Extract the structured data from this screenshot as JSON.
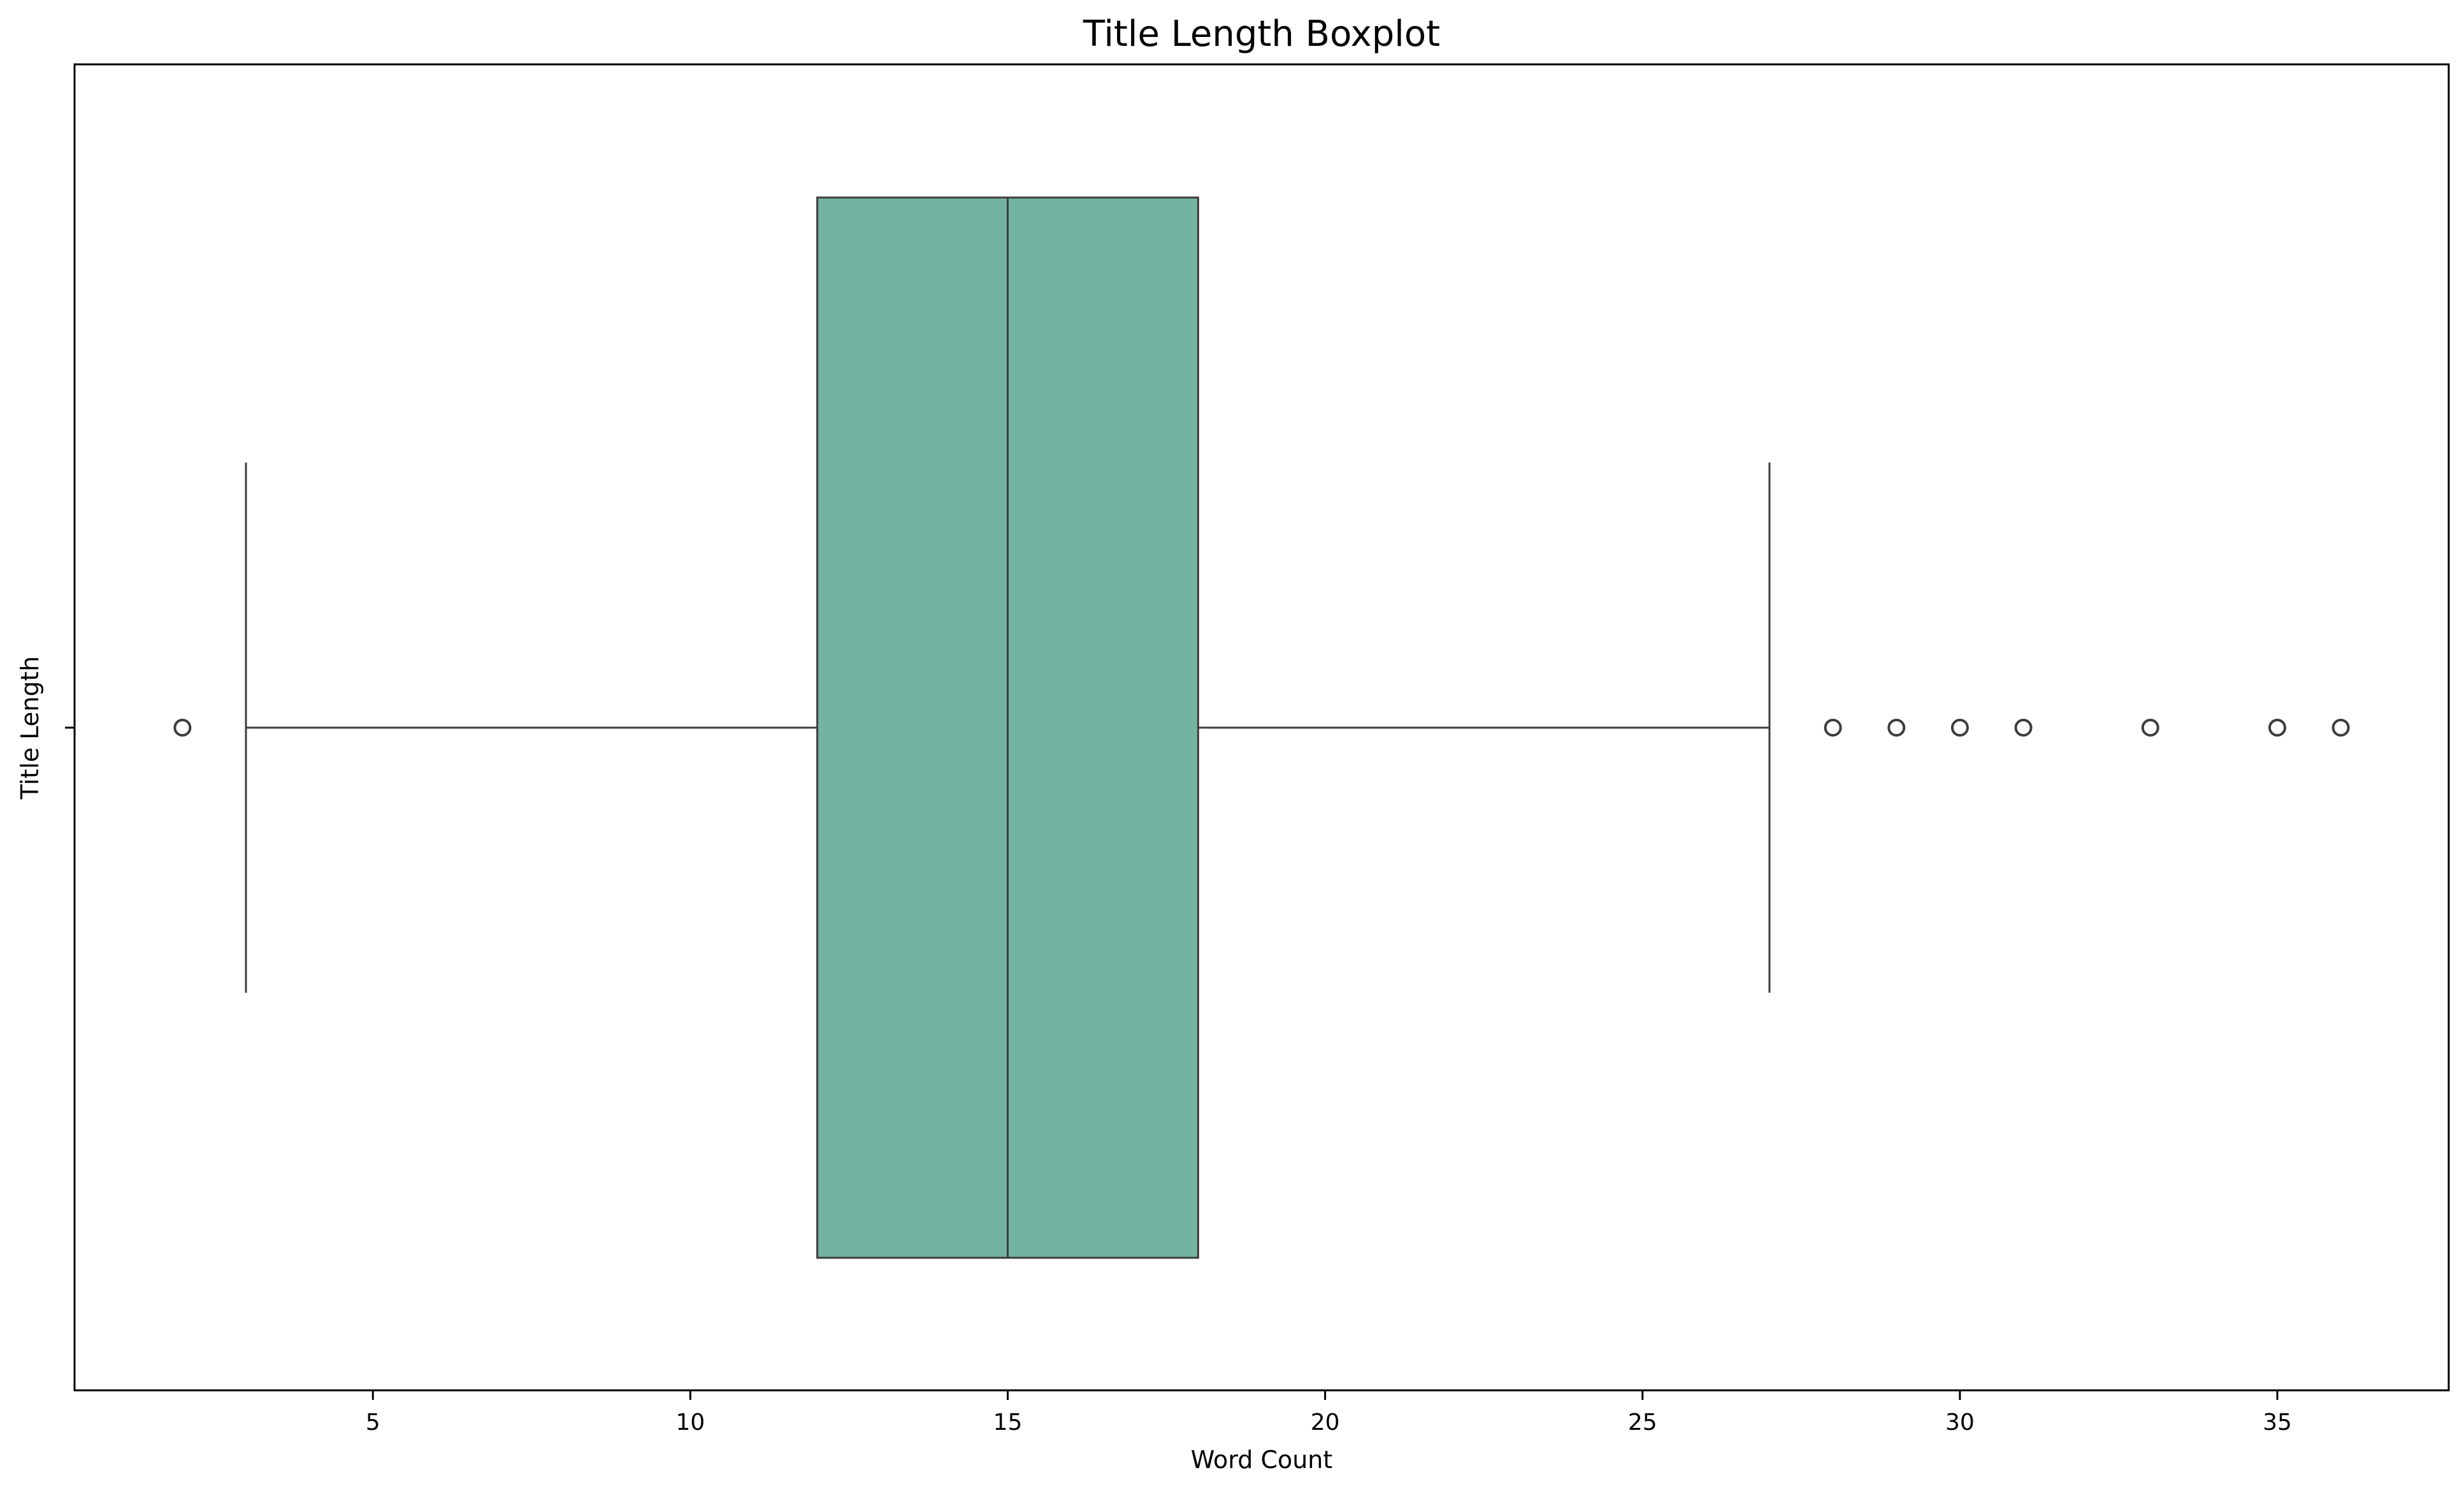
{
  "chart_data": {
    "type": "boxplot",
    "title": "Title Length Boxplot",
    "xlabel": "Word Count",
    "ylabel": "Title Length",
    "orientation": "horizontal",
    "xlim": [
      0.3,
      37.7
    ],
    "xticks": [
      5,
      10,
      15,
      20,
      25,
      30,
      35
    ],
    "yticks": [
      ""
    ],
    "grid": false,
    "box": {
      "whisker_low": 3,
      "q1": 12,
      "median": 15,
      "q3": 18,
      "whisker_high": 27,
      "color": "#72b3a1",
      "line_color": "#3d3d3d"
    },
    "outliers": [
      2,
      28,
      29,
      30,
      31,
      33,
      35,
      36
    ]
  }
}
